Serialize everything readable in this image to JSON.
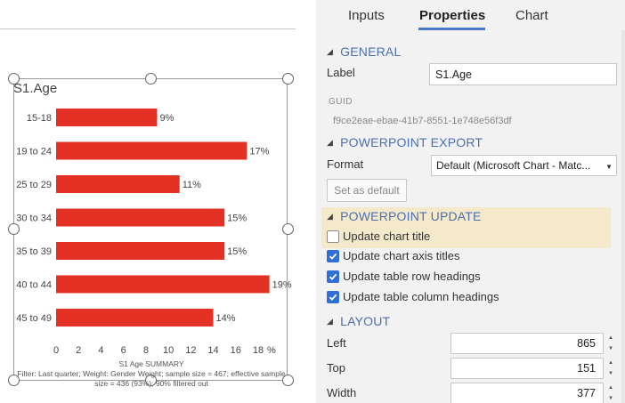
{
  "tabs": [
    {
      "label": "Inputs"
    },
    {
      "label": "Properties"
    },
    {
      "label": "Chart"
    }
  ],
  "chart_data": {
    "type": "bar",
    "orientation": "horizontal",
    "title": "S1.Age",
    "categories": [
      "15-18",
      "19 to 24",
      "25 to 29",
      "30 to 34",
      "35 to 39",
      "40 to 44",
      "45 to 49"
    ],
    "values": [
      9,
      17,
      11,
      15,
      15,
      19,
      14
    ],
    "value_labels": [
      "9%",
      "17%",
      "11%",
      "15%",
      "15%",
      "19%",
      "14%"
    ],
    "xlim": [
      0,
      18
    ],
    "xticks": [
      0,
      2,
      4,
      6,
      8,
      10,
      12,
      14,
      16,
      18
    ],
    "x_unit": "%",
    "bar_color": "#e33125",
    "footer_title": "S1 Age SUMMARY",
    "footer_line1": "Filter: Last quarter; Weight: Gender Weight; sample size = 467; effective sample",
    "footer_line2": "size = 436 (93%); 90% filtered out"
  },
  "general": {
    "header": "GENERAL",
    "label_caption": "Label",
    "label_value": "S1.Age",
    "guid_caption": "GUID",
    "guid_value": "f9ce2eae-ebae-41b7-8551-1e748e56f3df"
  },
  "ppt_export": {
    "header": "POWERPOINT EXPORT",
    "format_caption": "Format",
    "format_value": "Default (Microsoft Chart - Matc...",
    "set_default_label": "Set as default"
  },
  "ppt_update": {
    "header": "POWERPOINT UPDATE",
    "options": [
      {
        "label": "Update chart title",
        "checked": false
      },
      {
        "label": "Update chart axis titles",
        "checked": true
      },
      {
        "label": "Update table row headings",
        "checked": true
      },
      {
        "label": "Update table column headings",
        "checked": true
      }
    ]
  },
  "layout": {
    "header": "LAYOUT",
    "fields": [
      {
        "label": "Left",
        "value": "865"
      },
      {
        "label": "Top",
        "value": "151"
      },
      {
        "label": "Width",
        "value": "377"
      }
    ]
  },
  "colors": {
    "accent": "#4a78c8",
    "section_header": "#4a6fb5",
    "checkbox": "#2f6fd6",
    "highlight": "#f4eacb"
  }
}
